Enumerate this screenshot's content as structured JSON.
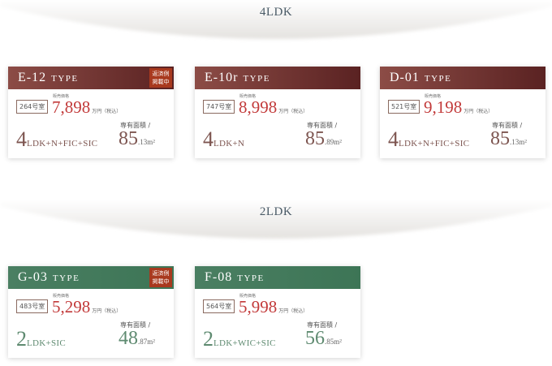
{
  "sections": [
    {
      "title": "4LDK",
      "theme": "brown",
      "cards": [
        {
          "code": "E-12",
          "type_word": "TYPE",
          "badge": [
            "返済例",
            "掲載中"
          ],
          "unit": "264号室",
          "price_label": "販売価格",
          "price": "7,898",
          "price_unit": "万円（税込）",
          "layout_num": "4",
          "layout_rest": "LDK+N+FIC+SIC",
          "area_label": "専有面積 /",
          "area_int": "85",
          "area_dec": ".13m²"
        },
        {
          "code": "E-10r",
          "type_word": "TYPE",
          "unit": "747号室",
          "price_label": "販売価格",
          "price": "8,998",
          "price_unit": "万円（税込）",
          "layout_num": "4",
          "layout_rest": "LDK+N",
          "area_label": "専有面積 /",
          "area_int": "85",
          "area_dec": ".89m²"
        },
        {
          "code": "D-01",
          "type_word": "TYPE",
          "unit": "521号室",
          "price_label": "販売価格",
          "price": "9,198",
          "price_unit": "万円（税込）",
          "layout_num": "4",
          "layout_rest": "LDK+N+FIC+SIC",
          "area_label": "専有面積 /",
          "area_int": "85",
          "area_dec": ".13m²"
        }
      ]
    },
    {
      "title": "2LDK",
      "theme": "green",
      "cards": [
        {
          "code": "G-03",
          "type_word": "TYPE",
          "badge": [
            "返済例",
            "掲載中"
          ],
          "unit": "483号室",
          "price_label": "販売価格",
          "price": "5,298",
          "price_unit": "万円（税込）",
          "layout_num": "2",
          "layout_rest": "LDK+SIC",
          "area_label": "専有面積 /",
          "area_int": "48",
          "area_dec": ".87m²"
        },
        {
          "code": "F-08",
          "type_word": "TYPE",
          "unit": "564号室",
          "price_label": "販売価格",
          "price": "5,998",
          "price_unit": "万円（税込）",
          "layout_num": "2",
          "layout_rest": "LDK+WIC+SIC",
          "area_label": "専有面積 /",
          "area_int": "56",
          "area_dec": ".85m²"
        }
      ]
    }
  ]
}
